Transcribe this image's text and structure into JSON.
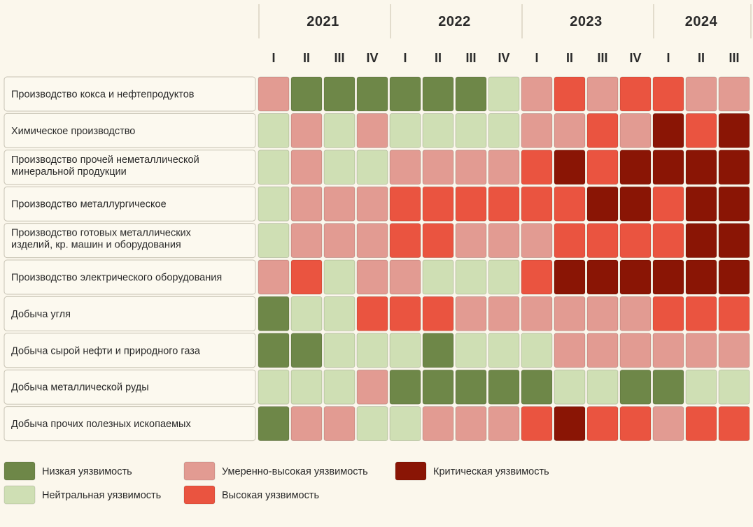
{
  "chart_data": {
    "type": "heatmap",
    "years": [
      {
        "label": "2021",
        "span": 4
      },
      {
        "label": "2022",
        "span": 4
      },
      {
        "label": "2023",
        "span": 4
      },
      {
        "label": "2024",
        "span": 3
      }
    ],
    "quarters": [
      "I",
      "II",
      "III",
      "IV",
      "I",
      "II",
      "III",
      "IV",
      "I",
      "II",
      "III",
      "IV",
      "I",
      "II",
      "III"
    ],
    "rows": [
      {
        "label": "Производство кокса и нефтепродуктов",
        "values": [
          "mod",
          "low",
          "low",
          "low",
          "low",
          "low",
          "low",
          "neu",
          "mod",
          "high",
          "mod",
          "high",
          "high",
          "mod",
          "mod"
        ]
      },
      {
        "label": "Химическое производство",
        "values": [
          "neu",
          "mod",
          "neu",
          "mod",
          "neu",
          "neu",
          "neu",
          "neu",
          "mod",
          "mod",
          "high",
          "mod",
          "crit",
          "high",
          "crit"
        ]
      },
      {
        "label": "Производство прочей неметаллической минеральной продукции",
        "lines": [
          "Производство прочей неметаллической",
          "минеральной продукции"
        ],
        "values": [
          "neu",
          "mod",
          "neu",
          "neu",
          "mod",
          "mod",
          "mod",
          "mod",
          "high",
          "crit",
          "high",
          "crit",
          "crit",
          "crit",
          "crit"
        ]
      },
      {
        "label": "Производство металлургическое",
        "values": [
          "neu",
          "mod",
          "mod",
          "mod",
          "high",
          "high",
          "high",
          "high",
          "high",
          "high",
          "crit",
          "crit",
          "high",
          "crit",
          "crit"
        ]
      },
      {
        "label": "Производство готовых металлических изделий, кр. машин и оборудования",
        "lines": [
          "Производство готовых металлических",
          "изделий, кр. машин и оборудования"
        ],
        "values": [
          "neu",
          "mod",
          "mod",
          "mod",
          "high",
          "high",
          "mod",
          "mod",
          "mod",
          "high",
          "high",
          "high",
          "high",
          "crit",
          "crit"
        ]
      },
      {
        "label": "Производство электрического оборудования",
        "values": [
          "mod",
          "high",
          "neu",
          "mod",
          "mod",
          "neu",
          "neu",
          "neu",
          "high",
          "crit",
          "crit",
          "crit",
          "crit",
          "crit",
          "crit"
        ]
      },
      {
        "label": "Добыча угля",
        "values": [
          "low",
          "neu",
          "neu",
          "high",
          "high",
          "high",
          "mod",
          "mod",
          "mod",
          "mod",
          "mod",
          "mod",
          "high",
          "high",
          "high"
        ]
      },
      {
        "label": "Добыча сырой нефти и природного газа",
        "values": [
          "low",
          "low",
          "neu",
          "neu",
          "neu",
          "low",
          "neu",
          "neu",
          "neu",
          "mod",
          "mod",
          "mod",
          "mod",
          "mod",
          "mod"
        ]
      },
      {
        "label": "Добыча металлической руды",
        "values": [
          "neu",
          "neu",
          "neu",
          "mod",
          "low",
          "low",
          "low",
          "low",
          "low",
          "neu",
          "neu",
          "low",
          "low",
          "neu",
          "neu"
        ]
      },
      {
        "label": "Добыча прочих полезных ископаемых",
        "values": [
          "low",
          "mod",
          "mod",
          "neu",
          "neu",
          "mod",
          "mod",
          "mod",
          "high",
          "crit",
          "high",
          "high",
          "mod",
          "high",
          "high"
        ]
      }
    ],
    "levels": {
      "low": {
        "label": "Низкая уязвимость",
        "color": "#6e8748"
      },
      "neu": {
        "label": "Нейтральная уязвимость",
        "color": "#cfdfb4"
      },
      "mod": {
        "label": "Умеренно-высокая уязвимость",
        "color": "#e29b92"
      },
      "high": {
        "label": "Высокая уязвимость",
        "color": "#ea5440"
      },
      "crit": {
        "label": "Критическая уязвимость",
        "color": "#8a1505"
      }
    },
    "legend": [
      [
        "low",
        "neu"
      ],
      [
        "mod",
        "high"
      ],
      [
        "crit"
      ]
    ]
  }
}
